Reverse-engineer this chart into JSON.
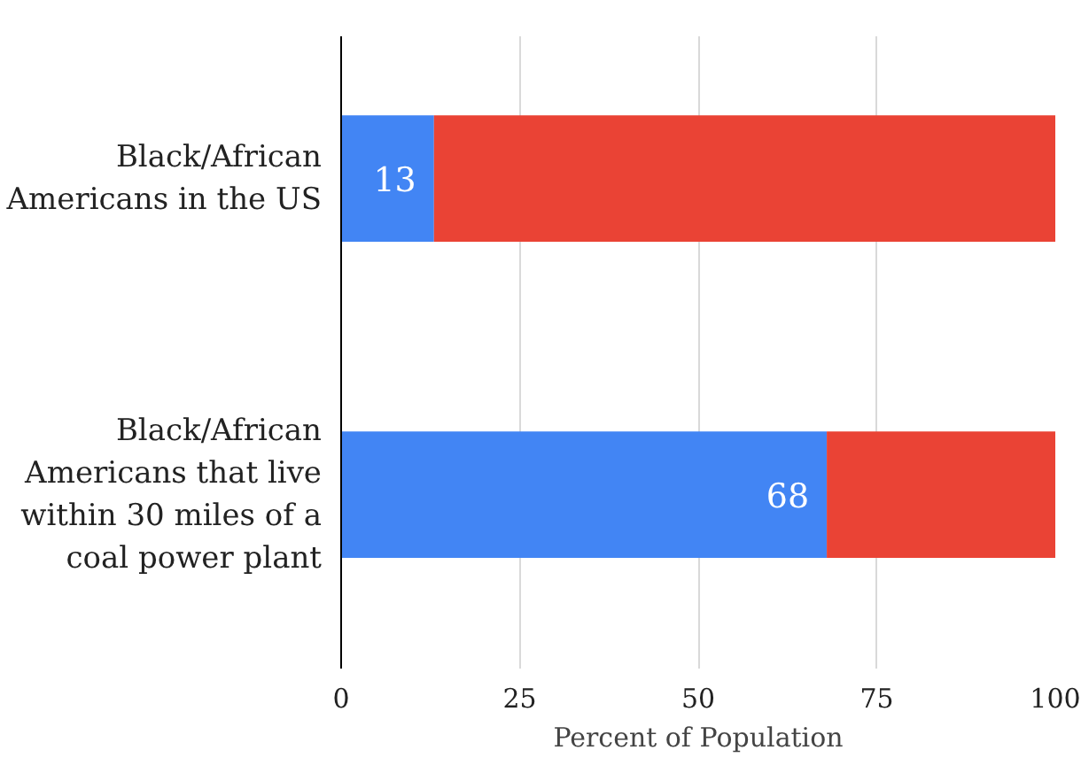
{
  "chart_data": {
    "type": "bar",
    "orientation": "horizontal",
    "stacked": true,
    "xlabel": "Percent of Population",
    "categories": [
      "Black/African Americans in the US",
      "Black/African Americans that live within 30 miles of a coal power plant"
    ],
    "series": [
      {
        "color": "#4285f4",
        "values": [
          13,
          68
        ],
        "value_labels": [
          "13",
          "68"
        ]
      },
      {
        "color": "#ea4335",
        "values": [
          87,
          32
        ]
      }
    ],
    "xlim": [
      0,
      100
    ],
    "xticks": [
      0,
      25,
      50,
      75,
      100
    ],
    "grid": "x"
  }
}
